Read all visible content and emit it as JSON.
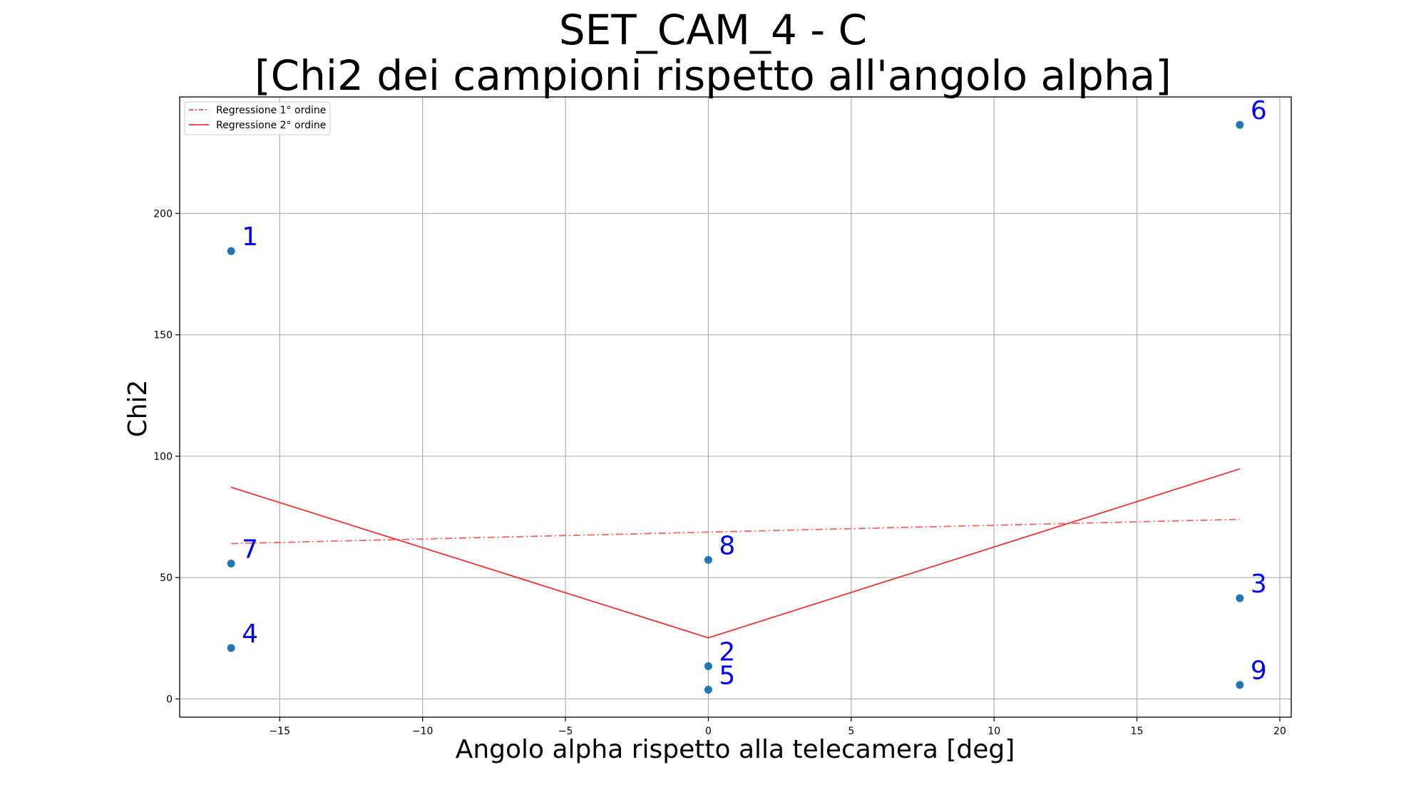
{
  "chart_data": {
    "type": "scatter",
    "title": [
      "SET_CAM_4 - C",
      "[Chi2 dei campioni rispetto all'angolo alpha]"
    ],
    "xlabel": "Angolo alpha rispetto alla telecamera [deg]",
    "ylabel": "Chi2",
    "xlim": [
      -18.5,
      20.4
    ],
    "ylim": [
      -7.5,
      248
    ],
    "xticks": [
      -15,
      -10,
      -5,
      0,
      5,
      10,
      15,
      20
    ],
    "xtick_labels": [
      "−15",
      "−10",
      "−5",
      "0",
      "5",
      "10",
      "15",
      "20"
    ],
    "yticks": [
      0,
      50,
      100,
      150,
      200
    ],
    "ytick_labels": [
      "0",
      "50",
      "100",
      "150",
      "200"
    ],
    "grid": true,
    "legend_position": "top-left",
    "points": [
      {
        "label": "1",
        "x": -16.7,
        "y": 184.5
      },
      {
        "label": "2",
        "x": 0.0,
        "y": 13.5
      },
      {
        "label": "3",
        "x": 18.6,
        "y": 41.5
      },
      {
        "label": "4",
        "x": -16.7,
        "y": 21.0
      },
      {
        "label": "5",
        "x": 0.0,
        "y": 3.8
      },
      {
        "label": "6",
        "x": 18.6,
        "y": 236.5
      },
      {
        "label": "7",
        "x": -16.7,
        "y": 55.8
      },
      {
        "label": "8",
        "x": 0.0,
        "y": 57.3
      },
      {
        "label": "9",
        "x": 18.6,
        "y": 5.8
      }
    ],
    "series": [
      {
        "name": "Regressione 1° ordine",
        "style": "dashdot",
        "color": "#ff4444",
        "x": [
          -16.7,
          18.6
        ],
        "y": [
          64.0,
          74.0
        ]
      },
      {
        "name": "Regressione 2° ordine",
        "style": "solid",
        "color": "#ee3333",
        "x": [
          -16.7,
          0.0,
          18.6
        ],
        "y": [
          87.2,
          25.2,
          94.8
        ]
      }
    ],
    "point_color": "#1f77b4",
    "label_color": "#0000ff"
  }
}
